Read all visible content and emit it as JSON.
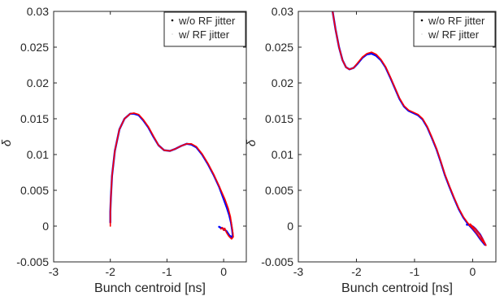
{
  "chart_data": [
    {
      "type": "line",
      "xlabel": "Bunch centroid [ns]",
      "ylabel": "δ",
      "xlim": [
        -3,
        0.4
      ],
      "ylim": [
        -0.005,
        0.03
      ],
      "xticks": [
        "-3",
        "-2",
        "-1",
        "0"
      ],
      "yticks": [
        "0.03",
        "0.025",
        "0.02",
        "0.015",
        "0.01",
        "0.005",
        "0",
        "-0.005"
      ],
      "grid": false,
      "legend": "top-right",
      "series": [
        {
          "name": "w/o RF jitter",
          "color": "#0000ff",
          "x": [
            -2.0,
            -2.0,
            -1.99,
            -1.97,
            -1.92,
            -1.84,
            -1.75,
            -1.65,
            -1.58,
            -1.5,
            -1.42,
            -1.33,
            -1.24,
            -1.15,
            -1.05,
            -0.95,
            -0.85,
            -0.75,
            -0.65,
            -0.57,
            -0.48,
            -0.38,
            -0.28,
            -0.18,
            -0.08,
            0.0,
            0.06,
            0.1,
            0.13,
            0.15,
            0.16,
            0.15,
            0.1,
            0.05,
            0.0,
            -0.03,
            -0.06,
            -0.08
          ],
          "y": [
            0.0005,
            0.002,
            0.004,
            0.007,
            0.0105,
            0.0135,
            0.015,
            0.0157,
            0.0157,
            0.0155,
            0.0148,
            0.0138,
            0.0125,
            0.0113,
            0.0106,
            0.0105,
            0.0108,
            0.0112,
            0.0115,
            0.0114,
            0.011,
            0.01,
            0.0087,
            0.0072,
            0.0055,
            0.0038,
            0.0025,
            0.0015,
            0.0005,
            -0.0005,
            -0.0012,
            -0.0016,
            -0.0013,
            -0.0007,
            -0.0004,
            -0.0003,
            -0.0002,
            -0.0001
          ]
        },
        {
          "name": "w/ RF jitter",
          "color": "#ff0000",
          "x": [
            -2.0,
            -2.0,
            -1.99,
            -1.97,
            -1.92,
            -1.84,
            -1.75,
            -1.65,
            -1.58,
            -1.5,
            -1.42,
            -1.33,
            -1.24,
            -1.15,
            -1.05,
            -0.95,
            -0.85,
            -0.75,
            -0.65,
            -0.57,
            -0.48,
            -0.38,
            -0.28,
            -0.18,
            -0.08,
            0.02,
            0.08,
            0.12,
            0.14,
            0.16,
            0.17,
            0.14,
            0.09,
            0.05,
            0.02,
            0.0,
            -0.02,
            -0.05
          ],
          "y": [
            0.0,
            0.002,
            0.004,
            0.007,
            0.0105,
            0.0135,
            0.015,
            0.0157,
            0.0158,
            0.0156,
            0.0149,
            0.0139,
            0.0126,
            0.0113,
            0.0106,
            0.0105,
            0.0108,
            0.0112,
            0.0115,
            0.0115,
            0.0111,
            0.0101,
            0.0088,
            0.0073,
            0.0056,
            0.0038,
            0.0025,
            0.0013,
            0.0002,
            -0.0008,
            -0.0015,
            -0.0018,
            -0.0014,
            -0.0009,
            -0.0003,
            -0.0006,
            -0.0002,
            -0.0004
          ]
        }
      ]
    },
    {
      "type": "line",
      "xlabel": "Bunch centroid [ns]",
      "ylabel": "δ",
      "xlim": [
        -3,
        0.4
      ],
      "ylim": [
        -0.005,
        0.03
      ],
      "xticks": [
        "-3",
        "-2",
        "-1",
        "0"
      ],
      "yticks": [
        "0.03",
        "0.025",
        "0.02",
        "0.015",
        "0.01",
        "0.005",
        "0",
        "-0.005"
      ],
      "grid": false,
      "legend": "top-right",
      "series": [
        {
          "name": "w/o RF jitter",
          "color": "#0000ff",
          "x": [
            -2.41,
            -2.36,
            -2.3,
            -2.24,
            -2.18,
            -2.12,
            -2.05,
            -1.98,
            -1.9,
            -1.82,
            -1.74,
            -1.66,
            -1.58,
            -1.5,
            -1.42,
            -1.34,
            -1.26,
            -1.18,
            -1.1,
            -1.02,
            -0.94,
            -0.86,
            -0.78,
            -0.7,
            -0.62,
            -0.55,
            -0.48,
            -0.4,
            -0.32,
            -0.24,
            -0.16,
            -0.08,
            0.0,
            0.07,
            0.13,
            0.18,
            0.21,
            0.22,
            0.2,
            0.17,
            0.13,
            0.09,
            0.05,
            0.01,
            -0.03,
            -0.07,
            -0.1
          ],
          "y": [
            0.03,
            0.0275,
            0.025,
            0.0232,
            0.0222,
            0.0219,
            0.0221,
            0.0227,
            0.0235,
            0.024,
            0.0241,
            0.0238,
            0.0232,
            0.0222,
            0.0208,
            0.0193,
            0.0178,
            0.0167,
            0.0161,
            0.0158,
            0.0155,
            0.0149,
            0.0138,
            0.0123,
            0.0107,
            0.009,
            0.0072,
            0.0055,
            0.0039,
            0.0024,
            0.0012,
            0.0003,
            -0.0004,
            -0.0011,
            -0.0018,
            -0.0023,
            -0.0026,
            -0.0026,
            -0.0023,
            -0.0018,
            -0.0012,
            -0.0008,
            -0.0004,
            -0.0001,
            0.0001,
            0.0002,
            0.0002
          ]
        },
        {
          "name": "w/ RF jitter",
          "color": "#ff0000",
          "x": [
            -2.41,
            -2.36,
            -2.3,
            -2.24,
            -2.18,
            -2.12,
            -2.05,
            -1.98,
            -1.9,
            -1.82,
            -1.74,
            -1.66,
            -1.58,
            -1.5,
            -1.42,
            -1.34,
            -1.26,
            -1.18,
            -1.1,
            -1.02,
            -0.94,
            -0.86,
            -0.78,
            -0.7,
            -0.62,
            -0.55,
            -0.48,
            -0.4,
            -0.32,
            -0.24,
            -0.16,
            -0.08,
            0.0,
            0.07,
            0.13,
            0.18,
            0.21,
            0.23,
            0.21,
            0.18,
            0.14,
            0.1,
            0.06,
            0.02,
            -0.01,
            -0.04,
            -0.06
          ],
          "y": [
            0.03,
            0.0275,
            0.025,
            0.0232,
            0.0222,
            0.0219,
            0.0221,
            0.0228,
            0.0236,
            0.0241,
            0.0243,
            0.024,
            0.0233,
            0.0223,
            0.0209,
            0.0194,
            0.0179,
            0.0168,
            0.0162,
            0.0159,
            0.0156,
            0.015,
            0.0139,
            0.0124,
            0.0108,
            0.0091,
            0.0073,
            0.0056,
            0.004,
            0.0025,
            0.0013,
            0.0004,
            -0.0003,
            -0.001,
            -0.0017,
            -0.0022,
            -0.0025,
            -0.0027,
            -0.0024,
            -0.0019,
            -0.0014,
            -0.0009,
            -0.0005,
            -0.0002,
            0.0,
            0.0003,
            0.0001
          ]
        }
      ]
    }
  ]
}
